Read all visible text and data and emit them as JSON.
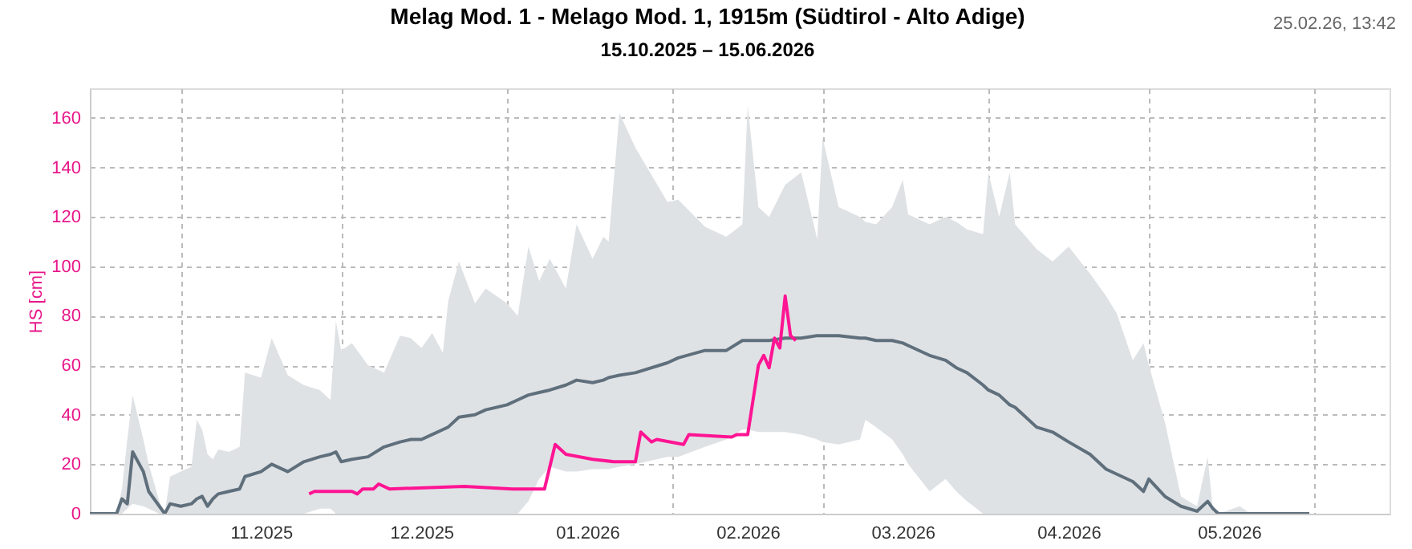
{
  "chart_data": {
    "type": "line",
    "title": "Melag Mod. 1 - Melago  Mod. 1, 1915m (Südtirol - Alto Adige)",
    "subtitle": "15.10.2025 – 15.06.2026",
    "ylabel": "HS [cm]",
    "annotations": [
      "25.02.26, 13:42"
    ],
    "xlim": [
      "2025-10-15",
      "2026-06-15"
    ],
    "xticks": [
      {
        "value": "2025-11-01",
        "label": null
      },
      {
        "value": "2025-11-16",
        "label": "11.2025"
      },
      {
        "value": "2025-12-01",
        "label": null
      },
      {
        "value": "2025-12-16",
        "label": "12.2025"
      },
      {
        "value": "2026-01-01",
        "label": null
      },
      {
        "value": "2026-01-16",
        "label": "01.2026"
      },
      {
        "value": "2026-02-01",
        "label": null
      },
      {
        "value": "2026-02-15",
        "label": "02.2026"
      },
      {
        "value": "2026-03-01",
        "label": null
      },
      {
        "value": "2026-03-16",
        "label": "03.2026"
      },
      {
        "value": "2026-04-01",
        "label": null
      },
      {
        "value": "2026-04-16",
        "label": "04.2026"
      },
      {
        "value": "2026-05-01",
        "label": null
      },
      {
        "value": "2026-05-16",
        "label": "05.2026"
      },
      {
        "value": "2026-06-01",
        "label": null
      }
    ],
    "ylim": [
      0,
      172
    ],
    "yticks": [
      0,
      20,
      40,
      60,
      80,
      100,
      120,
      140,
      160
    ],
    "grid": true,
    "series": [
      {
        "color": "#5f6f7c",
        "x": [
          "2025-10-15",
          "2025-10-20",
          "2025-10-21",
          "2025-10-22",
          "2025-10-23",
          "2025-10-25",
          "2025-10-26",
          "2025-10-28",
          "2025-10-29",
          "2025-10-30",
          "2025-11-01",
          "2025-11-03",
          "2025-11-04",
          "2025-11-05",
          "2025-11-06",
          "2025-11-07",
          "2025-11-08",
          "2025-11-10",
          "2025-11-12",
          "2025-11-13",
          "2025-11-16",
          "2025-11-18",
          "2025-11-21",
          "2025-11-24",
          "2025-11-27",
          "2025-11-29",
          "2025-11-30",
          "2025-12-01",
          "2025-12-03",
          "2025-12-06",
          "2025-12-09",
          "2025-12-12",
          "2025-12-14",
          "2025-12-16",
          "2025-12-18",
          "2025-12-20",
          "2025-12-21",
          "2025-12-23",
          "2025-12-26",
          "2025-12-28",
          "2026-01-01",
          "2026-01-03",
          "2026-01-05",
          "2026-01-07",
          "2026-01-09",
          "2026-01-12",
          "2026-01-14",
          "2026-01-17",
          "2026-01-19",
          "2026-01-20",
          "2026-01-22",
          "2026-01-25",
          "2026-01-31",
          "2026-02-02",
          "2026-02-07",
          "2026-02-11",
          "2026-02-14",
          "2026-02-15",
          "2026-02-17",
          "2026-02-19",
          "2026-02-22",
          "2026-02-25",
          "2026-02-28",
          "2026-03-01",
          "2026-03-04",
          "2026-03-08",
          "2026-03-09",
          "2026-03-11",
          "2026-03-14",
          "2026-03-16",
          "2026-03-17",
          "2026-03-21",
          "2026-03-24",
          "2026-03-26",
          "2026-03-28",
          "2026-03-31",
          "2026-04-01",
          "2026-04-03",
          "2026-04-05",
          "2026-04-06",
          "2026-04-10",
          "2026-04-13",
          "2026-04-16",
          "2026-04-20",
          "2026-04-23",
          "2026-04-25",
          "2026-04-28",
          "2026-04-30",
          "2026-05-01",
          "2026-05-04",
          "2026-05-07",
          "2026-05-10",
          "2026-05-12",
          "2026-05-13",
          "2026-05-14",
          "2026-05-18",
          "2026-05-20",
          "2026-05-31"
        ],
        "values": [
          0,
          0,
          6,
          4,
          25,
          17,
          9,
          3,
          0,
          4,
          3,
          4,
          6,
          7,
          3,
          6,
          8,
          9,
          10,
          15,
          17,
          20,
          17,
          21,
          23,
          24,
          25,
          21,
          22,
          23,
          27,
          29,
          30,
          30,
          32,
          34,
          35,
          39,
          40,
          42,
          44,
          46,
          48,
          49,
          50,
          52,
          54,
          53,
          54,
          55,
          56,
          57,
          61,
          63,
          66,
          66,
          70,
          70,
          70,
          70,
          71,
          71,
          72,
          72,
          72,
          71,
          71,
          70,
          70,
          69,
          68,
          64,
          62,
          59,
          57,
          52,
          50,
          48,
          44,
          43,
          35,
          33,
          29,
          24,
          18,
          16,
          13,
          9,
          14,
          7,
          3,
          1,
          5,
          2,
          0,
          0,
          0,
          0
        ],
        "lower": [
          0,
          0,
          0,
          2,
          4,
          3,
          2,
          0,
          0,
          0,
          0,
          0,
          0,
          0,
          0,
          0,
          0,
          0,
          0,
          0,
          0,
          0,
          0,
          0,
          2,
          2,
          0,
          0,
          0,
          0,
          0,
          0,
          0,
          0,
          0,
          0,
          0,
          0,
          0,
          0,
          0,
          0,
          5,
          14,
          19,
          17,
          17,
          18,
          18,
          18,
          19,
          20,
          23,
          23,
          27,
          30,
          34,
          34,
          33,
          33,
          33,
          32,
          30,
          29,
          28,
          30,
          38,
          35,
          30,
          24,
          20,
          9,
          14,
          9,
          5,
          0,
          0,
          0,
          0,
          0,
          0,
          0,
          0,
          0,
          0,
          0,
          0,
          0,
          0,
          0,
          0,
          0,
          0,
          0,
          0,
          0,
          0,
          0
        ],
        "upper": [
          0,
          0,
          10,
          30,
          48,
          30,
          20,
          5,
          0,
          15,
          17,
          19,
          38,
          34,
          24,
          22,
          26,
          25,
          27,
          57,
          55,
          71,
          56,
          52,
          50,
          46,
          78,
          66,
          69,
          60,
          57,
          72,
          71,
          67,
          73,
          65,
          86,
          102,
          85,
          91,
          85,
          80,
          108,
          94,
          103,
          91,
          117,
          103,
          112,
          110,
          162,
          148,
          126,
          127,
          116,
          112,
          117,
          165,
          124,
          120,
          133,
          138,
          111,
          152,
          124,
          120,
          118,
          117,
          124,
          135,
          121,
          117,
          120,
          118,
          115,
          113,
          138,
          120,
          138,
          117,
          107,
          102,
          108,
          97,
          88,
          81,
          62,
          69,
          60,
          37,
          7,
          3,
          23,
          1,
          0,
          3,
          0,
          0
        ]
      },
      {
        "color": "#ff1493",
        "x": [
          "2025-11-25",
          "2025-11-26",
          "2025-12-03",
          "2025-12-04",
          "2025-12-05",
          "2025-12-07",
          "2025-12-08",
          "2025-12-10",
          "2025-12-24",
          "2026-01-02",
          "2026-01-08",
          "2026-01-10",
          "2026-01-12",
          "2026-01-17",
          "2026-01-21",
          "2026-01-25",
          "2026-01-26",
          "2026-01-28",
          "2026-01-29",
          "2026-02-03",
          "2026-02-04",
          "2026-02-12",
          "2026-02-13",
          "2026-02-15",
          "2026-02-17",
          "2026-02-18",
          "2026-02-19",
          "2026-02-20",
          "2026-02-21",
          "2026-02-22",
          "2026-02-23",
          "2026-02-24"
        ],
        "values": [
          8,
          9,
          9,
          8,
          10,
          10,
          12,
          10,
          11,
          10,
          10,
          28,
          24,
          22,
          21,
          21,
          33,
          29,
          30,
          28,
          32,
          31,
          32,
          32,
          60,
          64,
          59,
          71,
          67,
          88,
          72,
          70
        ]
      }
    ]
  }
}
